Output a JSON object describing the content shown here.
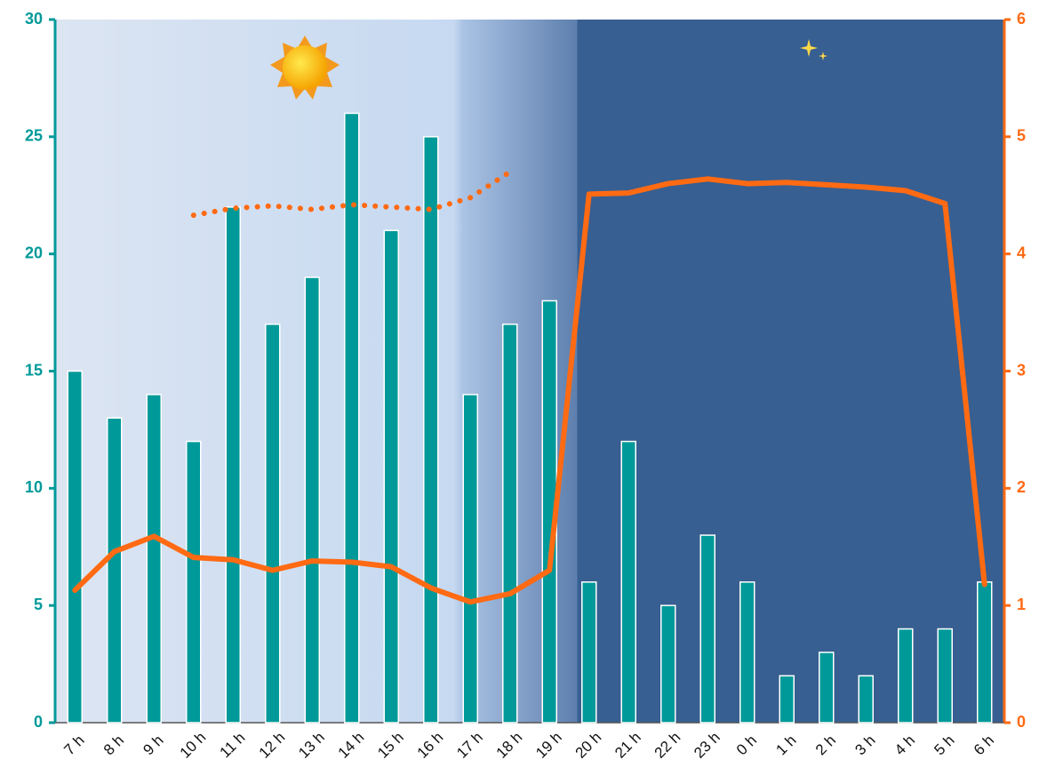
{
  "chart_data": {
    "type": "bar_line",
    "categories": [
      "7 h",
      "8 h",
      "9 h",
      "10 h",
      "11 h",
      "12 h",
      "13 h",
      "14 h",
      "15 h",
      "16 h",
      "17 h",
      "18 h",
      "19 h",
      "20 h",
      "21 h",
      "22 h",
      "23 h",
      "0 h",
      "1 h",
      "2 h",
      "3 h",
      "4 h",
      "5 h",
      "6 h"
    ],
    "series": [
      {
        "type": "bar",
        "color": "#009999",
        "values": [
          15,
          13,
          14,
          12,
          22,
          17,
          19,
          26,
          21,
          25,
          14,
          17,
          18,
          6,
          12,
          5,
          8,
          6,
          2,
          3,
          2,
          4,
          4,
          6
        ]
      },
      {
        "type": "line",
        "axis": "y2",
        "color": "#ff6a13",
        "values": [
          1.13,
          1.46,
          1.59,
          1.41,
          1.39,
          1.3,
          1.38,
          1.37,
          1.33,
          1.15,
          1.03,
          1.1,
          1.3,
          4.51,
          4.52,
          4.6,
          4.64,
          4.6,
          4.61,
          4.59,
          4.57,
          4.54,
          4.43,
          1.18
        ]
      },
      {
        "type": "dotted-line",
        "axis": "y2",
        "color": "#ff6a13",
        "values": [
          null,
          null,
          null,
          4.33,
          4.39,
          4.41,
          4.38,
          4.42,
          4.4,
          4.38,
          4.48,
          4.7,
          null,
          null,
          null,
          null,
          null,
          null,
          null,
          null,
          null,
          null,
          null,
          null
        ]
      }
    ],
    "ylim": [
      0,
      30
    ],
    "yticks": [
      0,
      5,
      10,
      15,
      20,
      25,
      30
    ],
    "y2lim": [
      0,
      6
    ],
    "y2ticks": [
      0,
      1,
      2,
      3,
      4,
      5,
      6
    ]
  }
}
